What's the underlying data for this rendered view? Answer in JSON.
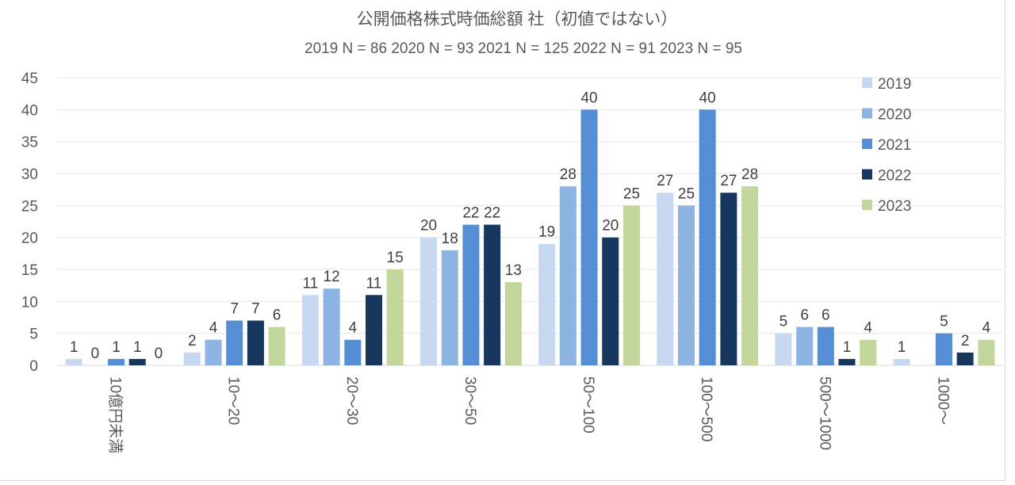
{
  "chart_data": {
    "type": "bar",
    "title": "公開価格株式時価総額  社（初値ではない）",
    "subtitle": "2019 N = 86   2020 N = 93   2021 N = 125  2022 N = 91  2023 N = 95",
    "xlabel": "",
    "ylabel": "",
    "ylim": [
      0,
      45
    ],
    "yticks": [
      0,
      5,
      10,
      15,
      20,
      25,
      30,
      35,
      40,
      45
    ],
    "grid": true,
    "legend_position": "right",
    "categories": [
      "10億円未満",
      "10〜20",
      "20〜30",
      "30〜50",
      "50〜100",
      "100〜500",
      "500〜1000",
      "1000〜"
    ],
    "series": [
      {
        "name": "2019",
        "color": "#c6d9f0",
        "values": [
          1,
          2,
          11,
          20,
          19,
          27,
          5,
          1
        ],
        "labels_shown": [
          true,
          true,
          true,
          true,
          true,
          true,
          true,
          true
        ]
      },
      {
        "name": "2020",
        "color": "#8eb4e3",
        "values": [
          0,
          4,
          12,
          18,
          28,
          25,
          6,
          0
        ],
        "labels_shown": [
          true,
          true,
          true,
          true,
          true,
          true,
          true,
          false
        ]
      },
      {
        "name": "2021",
        "color": "#558ed5",
        "values": [
          1,
          7,
          4,
          22,
          40,
          40,
          6,
          5
        ],
        "labels_shown": [
          true,
          true,
          true,
          true,
          true,
          true,
          true,
          true
        ]
      },
      {
        "name": "2022",
        "color": "#17375e",
        "values": [
          1,
          7,
          11,
          22,
          20,
          27,
          1,
          2
        ],
        "labels_shown": [
          true,
          true,
          true,
          true,
          true,
          true,
          true,
          true
        ]
      },
      {
        "name": "2023",
        "color": "#c3d69b",
        "values": [
          0,
          6,
          15,
          13,
          25,
          28,
          4,
          4
        ],
        "labels_shown": [
          true,
          true,
          true,
          true,
          true,
          true,
          true,
          true
        ]
      }
    ]
  }
}
